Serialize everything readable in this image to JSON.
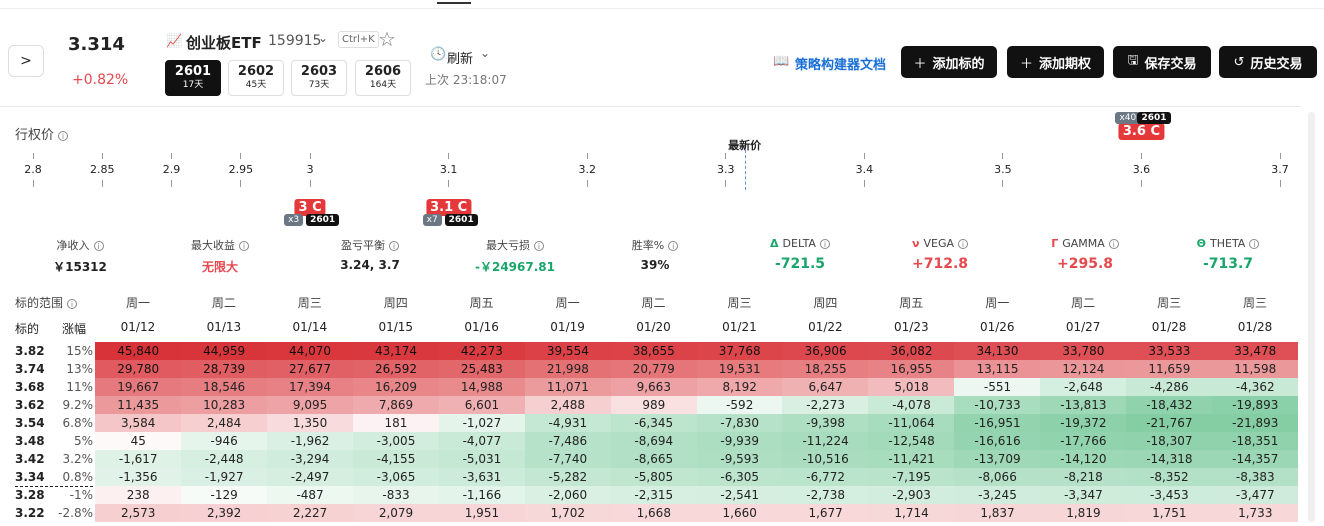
{
  "header": {
    "price": "3.314",
    "change": "+0.82%",
    "symbol_name": "创业板ETF",
    "symbol_code": "159915",
    "shortcut": "Ctrl+K",
    "expiries": [
      {
        "code": "2601",
        "days": "17天"
      },
      {
        "code": "2602",
        "days": "45天"
      },
      {
        "code": "2603",
        "days": "73天"
      },
      {
        "code": "2606",
        "days": "164天"
      }
    ],
    "refresh": "刷新",
    "last_update": "上次 23:18:07",
    "doc_link": "策略构建器文档",
    "actions": [
      "添加标的",
      "添加期权",
      "保存交易",
      "历史交易"
    ]
  },
  "strikes": {
    "label": "行权价",
    "ticks": [
      2.8,
      2.85,
      2.9,
      2.95,
      3,
      3.1,
      3.2,
      3.3,
      3.4,
      3.5,
      3.6,
      3.7
    ],
    "latest_label": "最新价",
    "positions": [
      {
        "strike": 3,
        "label": "3 C",
        "qty": "x3",
        "expiry": "2601",
        "placement": "below"
      },
      {
        "strike": 3.1,
        "label": "3.1 C",
        "qty": "x7",
        "expiry": "2601",
        "placement": "below"
      },
      {
        "strike": 3.6,
        "label": "3.6 C",
        "qty": "x40",
        "expiry": "2601",
        "placement": "above"
      }
    ]
  },
  "stats": [
    {
      "label": "净收入",
      "value": "￥15312",
      "color": "#222222"
    },
    {
      "label": "最大收益",
      "value": "无限大",
      "color": "#e5484d"
    },
    {
      "label": "盈亏平衡",
      "value": "3.24, 3.7",
      "color": "#222222"
    },
    {
      "label": "最大亏损",
      "value": "-￥24967.81",
      "color": "#1aa56a"
    },
    {
      "label": "胜率%",
      "value": "39%",
      "color": "#222222"
    },
    {
      "symbol": "Δ",
      "label": "DELTA",
      "value": "-721.5",
      "color": "#1aa56a"
    },
    {
      "symbol": "ν",
      "label": "VEGA",
      "value": "+712.8",
      "color": "#e5484d"
    },
    {
      "symbol": "Γ",
      "label": "GAMMA",
      "value": "+295.8",
      "color": "#e5484d"
    },
    {
      "symbol": "Θ",
      "label": "THETA",
      "value": "-713.7",
      "color": "#1aa56a"
    }
  ],
  "table": {
    "range_label": "标的范围",
    "col_underlying": "标的",
    "col_change": "涨幅",
    "weekdays": [
      "周一",
      "周二",
      "周三",
      "周四",
      "周五",
      "周一",
      "周二",
      "周三",
      "周四",
      "周五",
      "周一",
      "周二",
      "周三",
      "周三"
    ],
    "dates": [
      "01/12",
      "01/13",
      "01/14",
      "01/15",
      "01/16",
      "01/19",
      "01/20",
      "01/21",
      "01/22",
      "01/23",
      "01/26",
      "01/27",
      "01/28",
      "01/28"
    ],
    "rows": [
      {
        "price": "3.82",
        "change": "15%",
        "values": [
          "45,840",
          "44,959",
          "44,070",
          "43,174",
          "42,273",
          "39,554",
          "38,655",
          "37,768",
          "36,906",
          "36,082",
          "34,130",
          "33,780",
          "33,533",
          "33,478"
        ]
      },
      {
        "price": "3.74",
        "change": "13%",
        "values": [
          "29,780",
          "28,739",
          "27,677",
          "26,592",
          "25,483",
          "21,998",
          "20,779",
          "19,531",
          "18,255",
          "16,955",
          "13,115",
          "12,124",
          "11,659",
          "11,598"
        ]
      },
      {
        "price": "3.68",
        "change": "11%",
        "values": [
          "19,667",
          "18,546",
          "17,394",
          "16,209",
          "14,988",
          "11,071",
          "9,663",
          "8,192",
          "6,647",
          "5,018",
          "-551",
          "-2,648",
          "-4,286",
          "-4,362"
        ]
      },
      {
        "price": "3.62",
        "change": "9.2%",
        "values": [
          "11,435",
          "10,283",
          "9,095",
          "7,869",
          "6,601",
          "2,488",
          "989",
          "-592",
          "-2,273",
          "-4,078",
          "-10,733",
          "-13,813",
          "-18,432",
          "-19,893"
        ]
      },
      {
        "price": "3.54",
        "change": "6.8%",
        "values": [
          "3,584",
          "2,484",
          "1,350",
          "181",
          "-1,027",
          "-4,931",
          "-6,345",
          "-7,830",
          "-9,398",
          "-11,064",
          "-16,951",
          "-19,372",
          "-21,767",
          "-21,893"
        ]
      },
      {
        "price": "3.48",
        "change": "5%",
        "values": [
          "45",
          "-946",
          "-1,962",
          "-3,005",
          "-4,077",
          "-7,486",
          "-8,694",
          "-9,939",
          "-11,224",
          "-12,548",
          "-16,616",
          "-17,766",
          "-18,307",
          "-18,351"
        ]
      },
      {
        "price": "3.42",
        "change": "3.2%",
        "values": [
          "-1,617",
          "-2,448",
          "-3,294",
          "-4,155",
          "-5,031",
          "-7,740",
          "-8,665",
          "-9,593",
          "-10,516",
          "-11,421",
          "-13,709",
          "-14,120",
          "-14,318",
          "-14,357"
        ]
      },
      {
        "price": "3.34",
        "change": "0.8%",
        "values": [
          "-1,356",
          "-1,927",
          "-2,497",
          "-3,065",
          "-3,631",
          "-5,282",
          "-5,805",
          "-6,305",
          "-6,772",
          "-7,195",
          "-8,066",
          "-8,218",
          "-8,352",
          "-8,383"
        ]
      },
      {
        "price": "3.28",
        "change": "-1%",
        "values": [
          "238",
          "-129",
          "-487",
          "-833",
          "-1,166",
          "-2,060",
          "-2,315",
          "-2,541",
          "-2,738",
          "-2,903",
          "-3,245",
          "-3,347",
          "-3,453",
          "-3,477"
        ]
      },
      {
        "price": "3.22",
        "change": "-2.8%",
        "values": [
          "2,573",
          "2,392",
          "2,227",
          "2,079",
          "1,951",
          "1,702",
          "1,668",
          "1,660",
          "1,677",
          "1,714",
          "1,837",
          "1,819",
          "1,751",
          "1,733"
        ]
      }
    ]
  }
}
